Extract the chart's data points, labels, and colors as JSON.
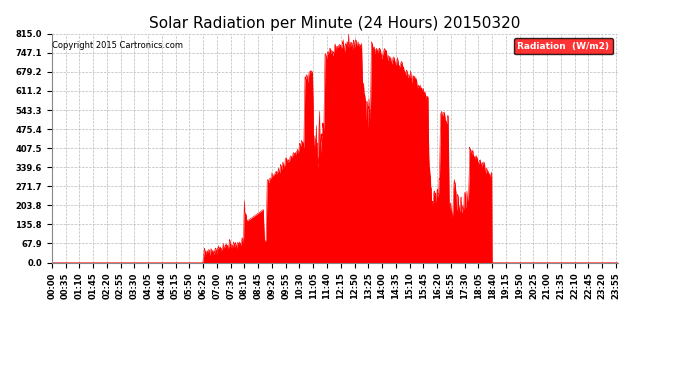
{
  "title": "Solar Radiation per Minute (24 Hours) 20150320",
  "copyright_text": "Copyright 2015 Cartronics.com",
  "legend_label": "Radiation  (W/m2)",
  "yticks": [
    0.0,
    67.9,
    135.8,
    203.8,
    271.7,
    339.6,
    407.5,
    475.4,
    543.3,
    611.2,
    679.2,
    747.1,
    815.0
  ],
  "ymax": 815.0,
  "ymin": 0.0,
  "fill_color": "#FF0000",
  "line_color": "#FF0000",
  "background_color": "#FFFFFF",
  "grid_color": "#BBBBBB",
  "title_fontsize": 11,
  "tick_fontsize": 6,
  "total_minutes": 1440,
  "sunrise_minute": 385,
  "sunset_minute": 1120
}
